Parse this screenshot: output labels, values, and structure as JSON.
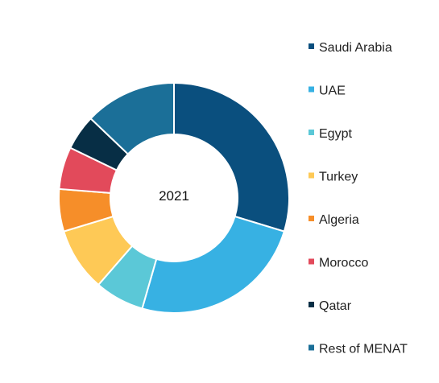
{
  "chart_data": {
    "type": "pie",
    "variant": "donut",
    "center_label": "2021",
    "legend_placement": "right",
    "categories": [
      "Saudi Arabia",
      "UAE",
      "Egypt",
      "Turkey",
      "Algeria",
      "Morocco",
      "Qatar",
      "Rest of MENAT"
    ],
    "values": [
      30,
      25,
      7,
      9,
      6,
      6,
      5,
      13
    ],
    "unit": "%",
    "colors": [
      "#0a4f7e",
      "#37b1e3",
      "#5bc8d7",
      "#fec956",
      "#f68e29",
      "#e24a5b",
      "#072e45",
      "#1b6f98"
    ],
    "start_angle_deg": 0,
    "direction": "clockwise"
  }
}
